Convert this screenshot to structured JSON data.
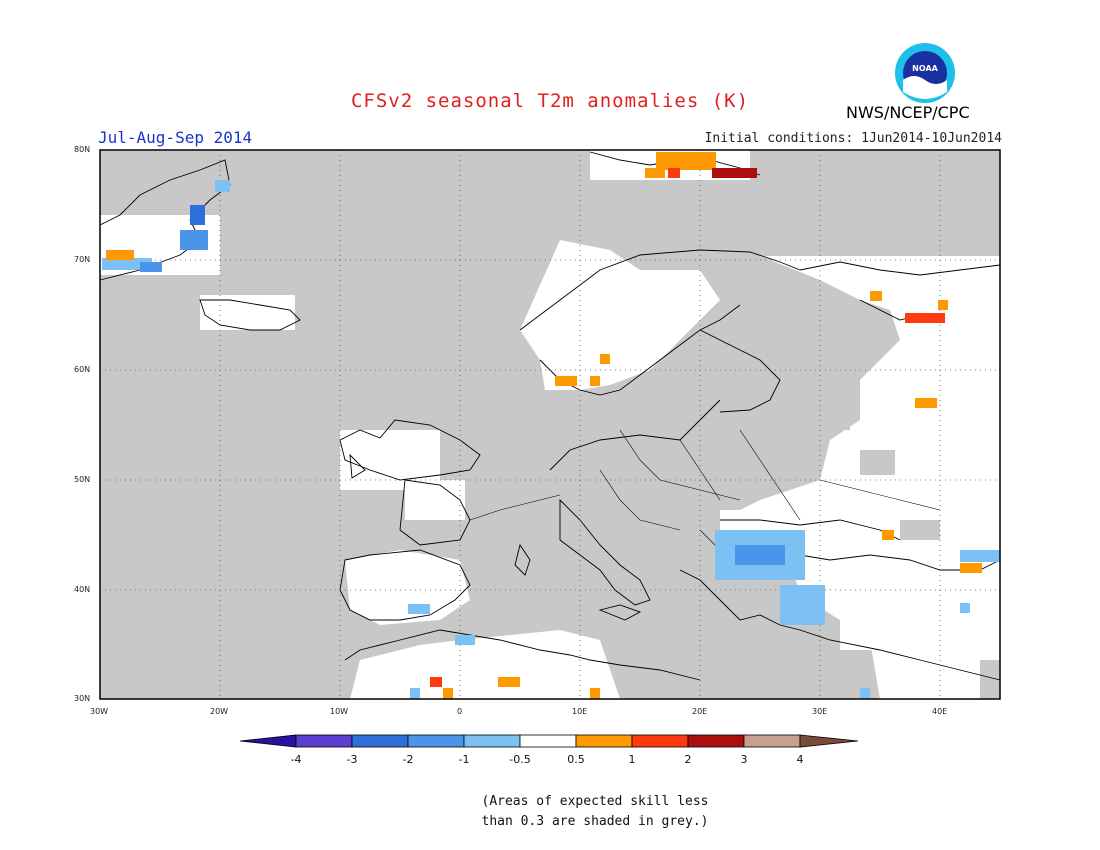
{
  "header": {
    "title": "CFSv2 seasonal T2m anomalies (K)",
    "period": "Jul-Aug-Sep 2014",
    "agency": "NWS/NCEP/CPC",
    "initial_conditions": "Initial conditions: 1Jun2014-10Jun2014",
    "logo_text": "NOAA"
  },
  "map": {
    "lat_labels": [
      "80N",
      "70N",
      "60N",
      "50N",
      "40N",
      "30N"
    ],
    "lon_labels": [
      "30W",
      "20W",
      "10W",
      "0",
      "10E",
      "20E",
      "30E",
      "40E"
    ],
    "colors": {
      "skill_grey": "#c8c8c8",
      "white": "#ffffff",
      "land_line": "#000000"
    }
  },
  "colorbar": {
    "ticks": [
      "-4",
      "-3",
      "-2",
      "-1",
      "-0.5",
      "0.5",
      "1",
      "2",
      "3",
      "4"
    ],
    "colors": [
      "#2a0fa0",
      "#5a3fd0",
      "#2f6fdc",
      "#4a95ea",
      "#7cc0f4",
      "#ffffff",
      "#ff9900",
      "#ff3a10",
      "#aa0e0e",
      "#c8a090",
      "#7a4a3a"
    ]
  },
  "footnote": {
    "line1": "(Areas of expected skill less",
    "line2": "than 0.3 are shaded in grey.)"
  }
}
